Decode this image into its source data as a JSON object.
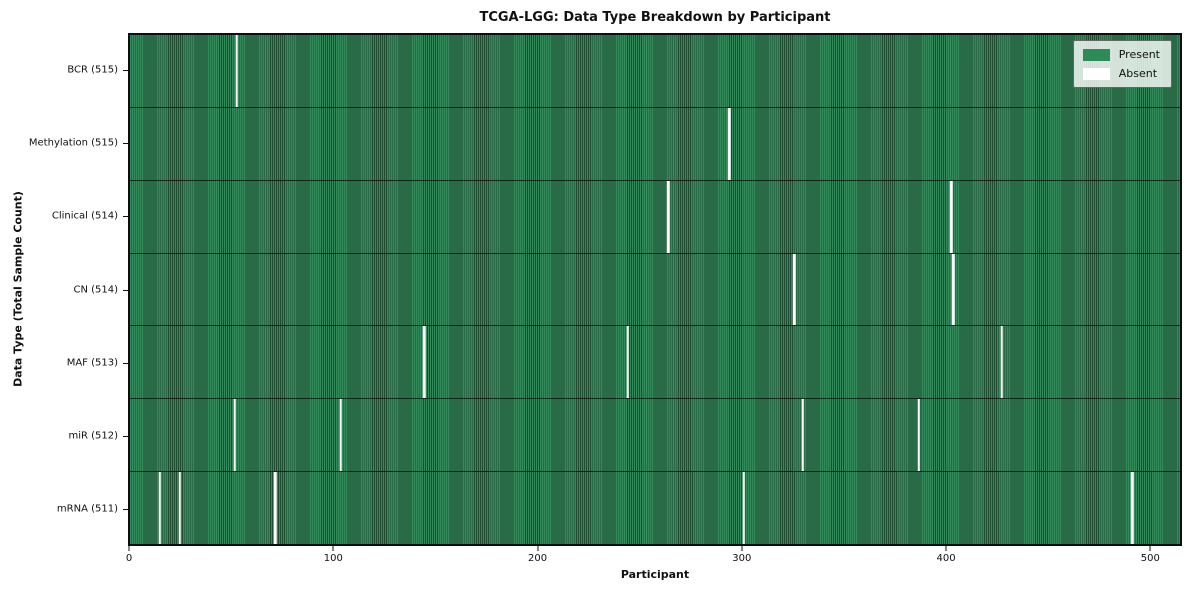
{
  "chart_data": {
    "type": "heatmap",
    "title": "TCGA-LGG: Data Type Breakdown by Participant",
    "xlabel": "Participant",
    "ylabel": "Data Type (Total Sample Count)",
    "n_participants": 516,
    "x_ticks": [
      0,
      100,
      200,
      300,
      400,
      500
    ],
    "grid": false,
    "legend": {
      "position": "upper-right",
      "entries": [
        {
          "label": "Present",
          "color": "#2e8b57"
        },
        {
          "label": "Absent",
          "color": "#ffffff"
        }
      ]
    },
    "colors": {
      "present": "#2e8b57",
      "present_cell_edge": "#1d4c31",
      "absent": "#ffffff",
      "row_separator": "#1a3322",
      "plot_border": "#0e0e0e"
    },
    "rows": [
      {
        "label": "BCR (515)",
        "data_type": "BCR",
        "total_samples": 515,
        "absent_participants": [
          52
        ]
      },
      {
        "label": "Methylation (515)",
        "data_type": "Methylation",
        "total_samples": 515,
        "absent_participants": [
          294
        ]
      },
      {
        "label": "Clinical (514)",
        "data_type": "Clinical",
        "total_samples": 514,
        "absent_participants": [
          264,
          403
        ]
      },
      {
        "label": "CN (514)",
        "data_type": "CN",
        "total_samples": 514,
        "absent_participants": [
          326,
          404
        ]
      },
      {
        "label": "MAF (513)",
        "data_type": "MAF",
        "total_samples": 513,
        "absent_participants": [
          144,
          244,
          428
        ]
      },
      {
        "label": "miR (512)",
        "data_type": "miR",
        "total_samples": 512,
        "absent_participants": [
          51,
          103,
          330,
          387
        ]
      },
      {
        "label": "mRNA (511)",
        "data_type": "mRNA",
        "total_samples": 511,
        "absent_participants": [
          14,
          24,
          71,
          301,
          492
        ]
      }
    ]
  }
}
